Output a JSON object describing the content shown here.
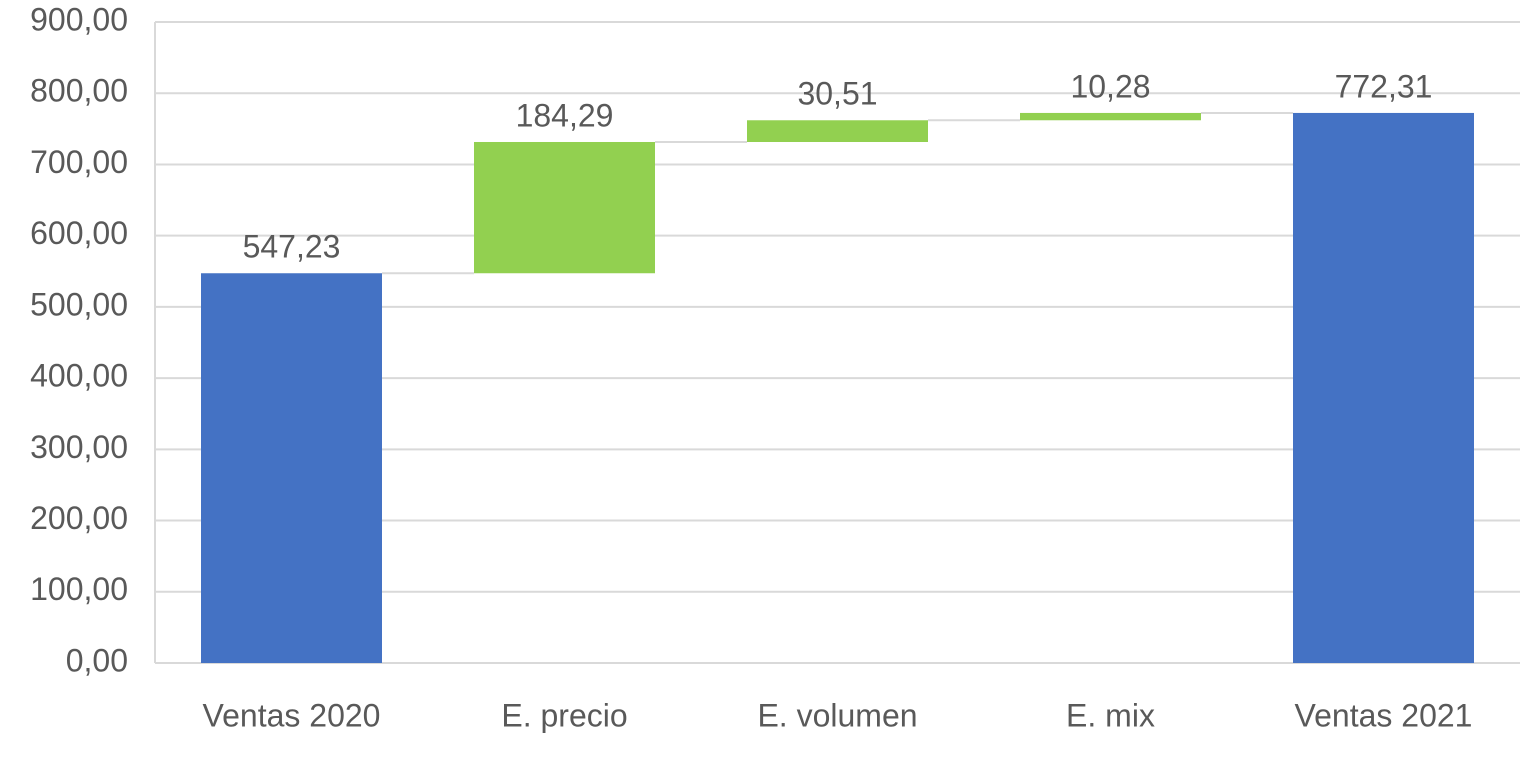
{
  "chart_data": {
    "type": "waterfall",
    "categories": [
      "Ventas 2020",
      "E. precio",
      "E. volumen",
      "E. mix",
      "Ventas 2021"
    ],
    "values": [
      547.23,
      184.29,
      30.51,
      10.28,
      772.31
    ],
    "value_labels": [
      "547,23",
      "184,29",
      "30,51",
      "10,28",
      "772,31"
    ],
    "measures": [
      "total",
      "relative",
      "relative",
      "relative",
      "total"
    ],
    "colors": [
      "#4472c4",
      "#92d050",
      "#92d050",
      "#92d050",
      "#4472c4"
    ],
    "ylim": [
      0,
      900
    ],
    "yticks": [
      {
        "value": 0,
        "label": "0,00"
      },
      {
        "value": 100,
        "label": "100,00"
      },
      {
        "value": 200,
        "label": "200,00"
      },
      {
        "value": 300,
        "label": "300,00"
      },
      {
        "value": 400,
        "label": "400,00"
      },
      {
        "value": 500,
        "label": "500,00"
      },
      {
        "value": 600,
        "label": "600,00"
      },
      {
        "value": 700,
        "label": "700,00"
      },
      {
        "value": 800,
        "label": "800,00"
      },
      {
        "value": 900,
        "label": "900,00"
      }
    ],
    "grid": true
  }
}
